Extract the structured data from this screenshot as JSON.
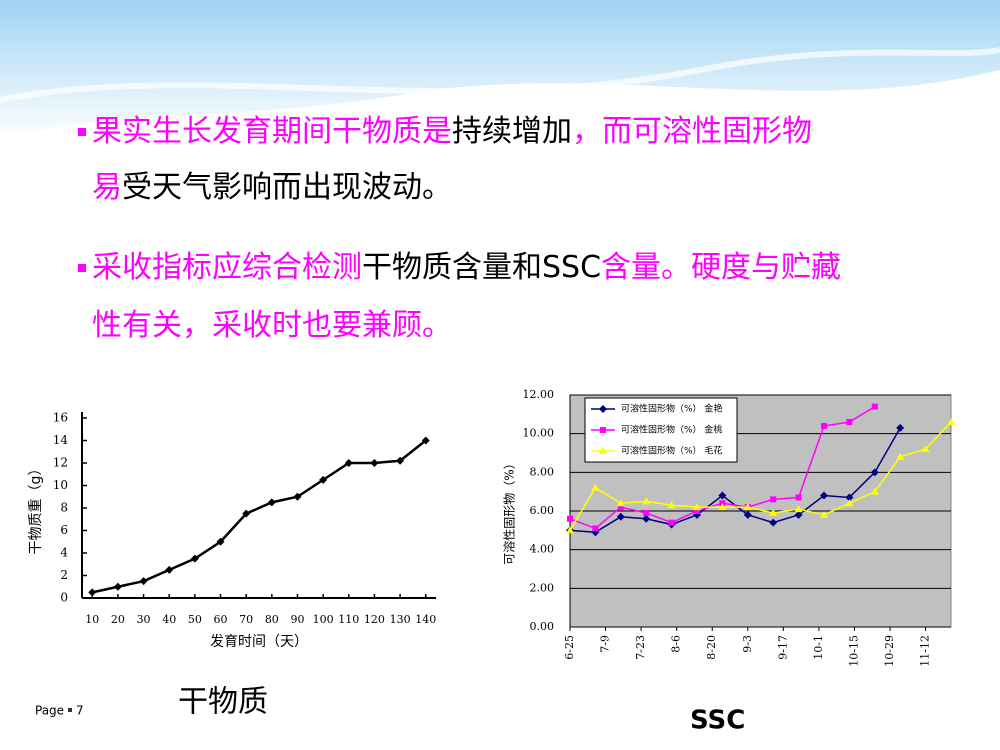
{
  "bullets": [
    {
      "lines": [
        [
          {
            "text": "果实生长发育期间干物质是",
            "color": "#ff00ff"
          },
          {
            "text": "持续增加",
            "color": "#000000"
          },
          {
            "text": "，而可溶性固形物",
            "color": "#ff00ff"
          }
        ],
        [
          {
            "text": "易",
            "color": "#ff00ff"
          },
          {
            "text": "受天气影响而出现波动。",
            "color": "#000000"
          }
        ]
      ]
    },
    {
      "lines": [
        [
          {
            "text": "采收指标应综合检测",
            "color": "#ff00ff"
          },
          {
            "text": "干物质含量和SSC",
            "color": "#000000"
          },
          {
            "text": "含量。硬度与贮藏",
            "color": "#ff00ff"
          }
        ],
        [
          {
            "text": "性有关，采收时也要兼顾。",
            "color": "#ff00ff"
          }
        ]
      ]
    }
  ],
  "captions": [
    "干物质",
    "SSC"
  ],
  "page": "Page",
  "page_number": "7",
  "chart_data": [
    {
      "type": "line",
      "xlabel": "发育时间（天）",
      "ylabel": "干物质重（g）",
      "x": [
        10,
        20,
        30,
        40,
        50,
        60,
        70,
        80,
        90,
        100,
        110,
        120,
        130,
        140
      ],
      "values": [
        0.5,
        1,
        1.5,
        2.5,
        3.5,
        5,
        7.5,
        8.5,
        9,
        10.5,
        12,
        12,
        12.2,
        14
      ],
      "color": "#000000",
      "marker": "diamond",
      "xlim": [
        6,
        144
      ],
      "ylim": [
        0,
        16
      ],
      "xticks": [
        10,
        20,
        30,
        40,
        50,
        60,
        70,
        80,
        90,
        100,
        110,
        120,
        130,
        140
      ],
      "yticks": [
        0,
        2,
        4,
        6,
        8,
        10,
        12,
        14,
        16
      ],
      "grid": false
    },
    {
      "type": "line",
      "ylabel": "可溶性固形物（%）",
      "x": [
        0,
        10,
        20,
        30,
        40,
        50,
        60,
        70,
        80,
        90,
        100,
        110,
        120,
        130,
        140,
        150
      ],
      "series": [
        {
          "name": "可溶性固形物（%） 金艳",
          "color": "#000080",
          "marker": "diamond",
          "values": [
            5.0,
            4.9,
            5.7,
            5.6,
            5.3,
            5.8,
            6.8,
            5.8,
            5.4,
            5.8,
            6.8,
            6.7,
            8.0,
            10.3,
            null,
            null
          ]
        },
        {
          "name": "可溶性固形物（%） 金桃",
          "color": "#ff00ff",
          "marker": "square",
          "values": [
            5.6,
            5.1,
            6.2,
            5.9,
            5.4,
            6.0,
            6.4,
            6.2,
            6.6,
            6.7,
            10.4,
            10.6,
            11.4,
            null,
            null,
            null
          ]
        },
        {
          "name": "可溶性固形物（%） 毛花",
          "color": "#ffff00",
          "marker": "triangle",
          "values": [
            5.0,
            7.2,
            6.4,
            6.5,
            6.3,
            6.2,
            6.2,
            6.2,
            5.9,
            6.1,
            5.8,
            6.4,
            7.0,
            8.8,
            9.2,
            10.6
          ]
        }
      ],
      "xlim": [
        0,
        150
      ],
      "ylim": [
        0,
        12
      ],
      "xticks": [
        {
          "value": 0,
          "label": "6-25"
        },
        {
          "value": 14,
          "label": "7-9"
        },
        {
          "value": 28,
          "label": "7-23"
        },
        {
          "value": 42,
          "label": "8-6"
        },
        {
          "value": 56,
          "label": "8-20"
        },
        {
          "value": 70,
          "label": "9-3"
        },
        {
          "value": 84,
          "label": "9-17"
        },
        {
          "value": 98,
          "label": "10-1"
        },
        {
          "value": 112,
          "label": "10-15"
        },
        {
          "value": 126,
          "label": "10-29"
        },
        {
          "value": 140,
          "label": "11-12"
        }
      ],
      "yticks": [
        {
          "value": 0,
          "label": "0.00"
        },
        {
          "value": 2,
          "label": "2.00"
        },
        {
          "value": 4,
          "label": "4.00"
        },
        {
          "value": 6,
          "label": "6.00"
        },
        {
          "value": 8,
          "label": "8.00"
        },
        {
          "value": 10,
          "label": "10.00"
        },
        {
          "value": 12,
          "label": "12.00"
        }
      ],
      "grid": true,
      "background": "#c0c0c0",
      "legend": "upper left"
    }
  ]
}
